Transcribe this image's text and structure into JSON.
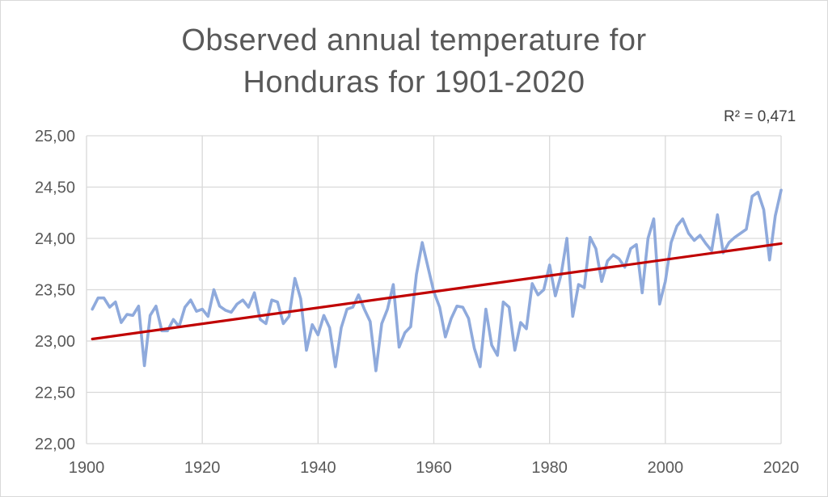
{
  "chart_data": {
    "type": "line",
    "title_line1": "Observed annual temperature for",
    "title_line2": "Honduras for 1901-2020",
    "annotation": "R² = 0,471",
    "xlim": [
      1900,
      2020
    ],
    "ylim": [
      22.0,
      25.0
    ],
    "x_ticks": [
      "1900",
      "1920",
      "1940",
      "1960",
      "1980",
      "2000",
      "2020"
    ],
    "y_ticks": [
      "22,00",
      "22,50",
      "23,00",
      "23,50",
      "24,00",
      "24,50",
      "25,00"
    ],
    "grid": true,
    "series": [
      {
        "color": "#8faadc",
        "x": [
          1901,
          1902,
          1903,
          1904,
          1905,
          1906,
          1907,
          1908,
          1909,
          1910,
          1911,
          1912,
          1913,
          1914,
          1915,
          1916,
          1917,
          1918,
          1919,
          1920,
          1921,
          1922,
          1923,
          1924,
          1925,
          1926,
          1927,
          1928,
          1929,
          1930,
          1931,
          1932,
          1933,
          1934,
          1935,
          1936,
          1937,
          1938,
          1939,
          1940,
          1941,
          1942,
          1943,
          1944,
          1945,
          1946,
          1947,
          1948,
          1949,
          1950,
          1951,
          1952,
          1953,
          1954,
          1955,
          1956,
          1957,
          1958,
          1959,
          1960,
          1961,
          1962,
          1963,
          1964,
          1965,
          1966,
          1967,
          1968,
          1969,
          1970,
          1971,
          1972,
          1973,
          1974,
          1975,
          1976,
          1977,
          1978,
          1979,
          1980,
          1981,
          1982,
          1983,
          1984,
          1985,
          1986,
          1987,
          1988,
          1989,
          1990,
          1991,
          1992,
          1993,
          1994,
          1995,
          1996,
          1997,
          1998,
          1999,
          2000,
          2001,
          2002,
          2003,
          2004,
          2005,
          2006,
          2007,
          2008,
          2009,
          2010,
          2011,
          2012,
          2013,
          2014,
          2015,
          2016,
          2017,
          2018,
          2019,
          2020
        ],
        "y": [
          23.31,
          23.42,
          23.42,
          23.33,
          23.38,
          23.18,
          23.26,
          23.25,
          23.34,
          22.76,
          23.25,
          23.34,
          23.1,
          23.1,
          23.21,
          23.14,
          23.33,
          23.4,
          23.29,
          23.31,
          23.24,
          23.5,
          23.34,
          23.3,
          23.28,
          23.36,
          23.4,
          23.33,
          23.47,
          23.21,
          23.17,
          23.4,
          23.38,
          23.17,
          23.24,
          23.61,
          23.41,
          22.91,
          23.16,
          23.06,
          23.25,
          23.13,
          22.75,
          23.13,
          23.31,
          23.33,
          23.45,
          23.31,
          23.19,
          22.71,
          23.17,
          23.31,
          23.55,
          22.94,
          23.08,
          23.14,
          23.65,
          23.96,
          23.72,
          23.48,
          23.33,
          23.04,
          23.22,
          23.34,
          23.33,
          23.22,
          22.93,
          22.75,
          23.31,
          22.96,
          22.86,
          23.38,
          23.33,
          22.91,
          23.18,
          23.12,
          23.56,
          23.45,
          23.5,
          23.74,
          23.44,
          23.65,
          24.0,
          23.24,
          23.55,
          23.52,
          24.01,
          23.9,
          23.58,
          23.78,
          23.84,
          23.8,
          23.72,
          23.9,
          23.94,
          23.47,
          24.0,
          24.19,
          23.36,
          23.58,
          23.96,
          24.12,
          24.19,
          24.05,
          23.98,
          24.03,
          23.95,
          23.88,
          24.23,
          23.86,
          23.96,
          24.01,
          24.05,
          24.09,
          24.41,
          24.45,
          24.28,
          23.79,
          24.22,
          24.47
        ]
      },
      {
        "color": "#c00000",
        "x": [
          1901,
          2020
        ],
        "y": [
          23.02,
          23.95
        ]
      }
    ]
  }
}
